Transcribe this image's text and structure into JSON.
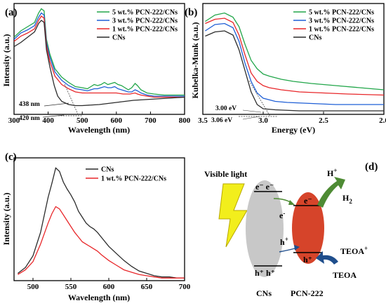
{
  "panels": {
    "a": "(a)",
    "b": "(b)",
    "c": "(c)",
    "d": "(d)"
  },
  "colors": {
    "cn": "#2b2b2b",
    "p1": "#e8272a",
    "p3": "#1f5fd6",
    "p5": "#22a64a",
    "grey": "#c8c8c8",
    "red": "#d6442a",
    "yellow": "#f2ee1c",
    "green": "#4e8b34",
    "blue": "#1f4e8c"
  },
  "chart_data": [
    {
      "panel": "(a)",
      "type": "line",
      "xlabel": "Wavelength (nm)",
      "ylabel": "Intensity (a.u.)",
      "xlim": [
        300,
        800
      ],
      "xticks": [
        300,
        400,
        500,
        600,
        700,
        800
      ],
      "yticks_shown": false,
      "legend": [
        "5 wt.% PCN-222/CNs",
        "3 wt.% PCN-222/CNs",
        "1 wt.% PCN-222/CNs",
        "CNs"
      ],
      "legend_position": "top-right",
      "annotations": [
        "438 nm",
        "420 nm"
      ],
      "series": [
        {
          "name": "5 wt.% PCN-222/CNs",
          "color": "#22a64a",
          "points": [
            [
              300,
              0.72
            ],
            [
              320,
              0.78
            ],
            [
              340,
              0.82
            ],
            [
              360,
              0.86
            ],
            [
              372,
              0.95
            ],
            [
              380,
              0.99
            ],
            [
              388,
              0.97
            ],
            [
              395,
              0.7
            ],
            [
              405,
              0.56
            ],
            [
              420,
              0.42
            ],
            [
              440,
              0.34
            ],
            [
              460,
              0.29
            ],
            [
              480,
              0.25
            ],
            [
              500,
              0.24
            ],
            [
              515,
              0.23
            ],
            [
              525,
              0.25
            ],
            [
              535,
              0.27
            ],
            [
              545,
              0.26
            ],
            [
              555,
              0.27
            ],
            [
              565,
              0.29
            ],
            [
              575,
              0.27
            ],
            [
              585,
              0.28
            ],
            [
              595,
              0.29
            ],
            [
              605,
              0.27
            ],
            [
              615,
              0.26
            ],
            [
              625,
              0.24
            ],
            [
              635,
              0.22
            ],
            [
              645,
              0.24
            ],
            [
              655,
              0.28
            ],
            [
              662,
              0.26
            ],
            [
              672,
              0.22
            ],
            [
              690,
              0.19
            ],
            [
              710,
              0.18
            ],
            [
              740,
              0.17
            ],
            [
              770,
              0.17
            ],
            [
              800,
              0.17
            ]
          ]
        },
        {
          "name": "3 wt.% PCN-222/CNs",
          "color": "#1f5fd6",
          "points": [
            [
              300,
              0.7
            ],
            [
              320,
              0.76
            ],
            [
              340,
              0.79
            ],
            [
              360,
              0.83
            ],
            [
              372,
              0.91
            ],
            [
              380,
              0.95
            ],
            [
              388,
              0.93
            ],
            [
              395,
              0.67
            ],
            [
              405,
              0.53
            ],
            [
              420,
              0.39
            ],
            [
              440,
              0.31
            ],
            [
              460,
              0.26
            ],
            [
              480,
              0.23
            ],
            [
              500,
              0.22
            ],
            [
              515,
              0.21
            ],
            [
              525,
              0.22
            ],
            [
              535,
              0.23
            ],
            [
              545,
              0.23
            ],
            [
              555,
              0.24
            ],
            [
              565,
              0.25
            ],
            [
              575,
              0.24
            ],
            [
              585,
              0.24
            ],
            [
              595,
              0.25
            ],
            [
              605,
              0.23
            ],
            [
              615,
              0.22
            ],
            [
              625,
              0.21
            ],
            [
              635,
              0.2
            ],
            [
              645,
              0.2
            ],
            [
              655,
              0.22
            ],
            [
              662,
              0.21
            ],
            [
              672,
              0.19
            ],
            [
              690,
              0.17
            ],
            [
              710,
              0.16
            ],
            [
              740,
              0.16
            ],
            [
              770,
              0.16
            ],
            [
              800,
              0.16
            ]
          ]
        },
        {
          "name": "1 wt.% PCN-222/CNs",
          "color": "#e8272a",
          "points": [
            [
              300,
              0.68
            ],
            [
              320,
              0.73
            ],
            [
              340,
              0.76
            ],
            [
              360,
              0.8
            ],
            [
              372,
              0.88
            ],
            [
              380,
              0.92
            ],
            [
              388,
              0.9
            ],
            [
              395,
              0.64
            ],
            [
              405,
              0.49
            ],
            [
              420,
              0.35
            ],
            [
              440,
              0.27
            ],
            [
              460,
              0.23
            ],
            [
              480,
              0.2
            ],
            [
              500,
              0.19
            ],
            [
              520,
              0.19
            ],
            [
              540,
              0.19
            ],
            [
              560,
              0.19
            ],
            [
              580,
              0.19
            ],
            [
              600,
              0.19
            ],
            [
              620,
              0.18
            ],
            [
              640,
              0.18
            ],
            [
              655,
              0.19
            ],
            [
              662,
              0.18
            ],
            [
              672,
              0.17
            ],
            [
              690,
              0.16
            ],
            [
              710,
              0.15
            ],
            [
              740,
              0.15
            ],
            [
              770,
              0.15
            ],
            [
              800,
              0.15
            ]
          ]
        },
        {
          "name": "CNs",
          "color": "#2b2b2b",
          "points": [
            [
              300,
              0.63
            ],
            [
              320,
              0.67
            ],
            [
              340,
              0.72
            ],
            [
              360,
              0.77
            ],
            [
              372,
              0.85
            ],
            [
              380,
              0.88
            ],
            [
              388,
              0.86
            ],
            [
              395,
              0.6
            ],
            [
              405,
              0.44
            ],
            [
              418,
              0.26
            ],
            [
              428,
              0.16
            ],
            [
              440,
              0.11
            ],
            [
              460,
              0.08
            ],
            [
              480,
              0.07
            ],
            [
              500,
              0.07
            ],
            [
              550,
              0.08
            ],
            [
              600,
              0.1
            ],
            [
              650,
              0.12
            ],
            [
              700,
              0.13
            ],
            [
              750,
              0.14
            ],
            [
              800,
              0.15
            ]
          ]
        }
      ]
    },
    {
      "panel": "(b)",
      "type": "line",
      "xlabel": "Energy (eV)",
      "ylabel": "Kubelka-Munk (a.u.)",
      "xlim": [
        3.5,
        2.0
      ],
      "xticks": [
        "3.5",
        "3.0",
        "2.5",
        "2.0"
      ],
      "yticks_shown": false,
      "legend": [
        "5 wt.% PCN-222/CNs",
        "3 wt.% PCN-222/CNs",
        "1 wt.% PCN-222/CNs",
        "CNs"
      ],
      "legend_position": "top-right",
      "annotations": [
        "3.00 eV",
        "3.06 eV"
      ],
      "series": [
        {
          "name": "5 wt.% PCN-222/CNs",
          "color": "#22a64a",
          "points": [
            [
              3.48,
              0.87
            ],
            [
              3.4,
              0.93
            ],
            [
              3.32,
              0.95
            ],
            [
              3.25,
              0.91
            ],
            [
              3.2,
              0.82
            ],
            [
              3.15,
              0.65
            ],
            [
              3.1,
              0.5
            ],
            [
              3.05,
              0.42
            ],
            [
              3.0,
              0.37
            ],
            [
              2.95,
              0.35
            ],
            [
              2.85,
              0.32
            ],
            [
              2.75,
              0.3
            ],
            [
              2.6,
              0.28
            ],
            [
              2.4,
              0.26
            ],
            [
              2.2,
              0.24
            ],
            [
              2.0,
              0.22
            ]
          ]
        },
        {
          "name": "3 wt.% PCN-222/CNs",
          "color": "#1f5fd6",
          "points": [
            [
              3.48,
              0.78
            ],
            [
              3.4,
              0.84
            ],
            [
              3.32,
              0.85
            ],
            [
              3.25,
              0.81
            ],
            [
              3.2,
              0.68
            ],
            [
              3.15,
              0.47
            ],
            [
              3.1,
              0.3
            ],
            [
              3.05,
              0.19
            ],
            [
              3.0,
              0.14
            ],
            [
              2.9,
              0.11
            ],
            [
              2.8,
              0.1
            ],
            [
              2.6,
              0.09
            ],
            [
              2.4,
              0.08
            ],
            [
              2.2,
              0.08
            ],
            [
              2.0,
              0.08
            ]
          ]
        },
        {
          "name": "1 wt.% PCN-222/CNs",
          "color": "#e8272a",
          "points": [
            [
              3.48,
              0.85
            ],
            [
              3.4,
              0.89
            ],
            [
              3.32,
              0.9
            ],
            [
              3.25,
              0.86
            ],
            [
              3.2,
              0.74
            ],
            [
              3.15,
              0.55
            ],
            [
              3.1,
              0.38
            ],
            [
              3.05,
              0.3
            ],
            [
              3.0,
              0.26
            ],
            [
              2.95,
              0.24
            ],
            [
              2.85,
              0.22
            ],
            [
              2.7,
              0.2
            ],
            [
              2.5,
              0.19
            ],
            [
              2.3,
              0.18
            ],
            [
              2.0,
              0.17
            ]
          ]
        },
        {
          "name": "CNs",
          "color": "#2b2b2b",
          "points": [
            [
              3.48,
              0.73
            ],
            [
              3.4,
              0.77
            ],
            [
              3.32,
              0.78
            ],
            [
              3.25,
              0.74
            ],
            [
              3.2,
              0.6
            ],
            [
              3.15,
              0.4
            ],
            [
              3.1,
              0.2
            ],
            [
              3.05,
              0.08
            ],
            [
              3.0,
              0.04
            ],
            [
              2.9,
              0.03
            ],
            [
              2.7,
              0.02
            ],
            [
              2.4,
              0.02
            ],
            [
              2.0,
              0.02
            ]
          ]
        }
      ]
    },
    {
      "panel": "(c)",
      "type": "line",
      "xlabel": "Wavelength (nm)",
      "ylabel": "Intensity (a.u.)",
      "xlim": [
        475,
        700
      ],
      "xticks": [
        500,
        550,
        600,
        650,
        700
      ],
      "yticks_shown": false,
      "legend": [
        "CNs",
        "1 wt.% PCN-222/CNs"
      ],
      "legend_position": "top-right",
      "series": [
        {
          "name": "CNs",
          "color": "#2b2b2b",
          "points": [
            [
              480,
              0.05
            ],
            [
              490,
              0.1
            ],
            [
              500,
              0.2
            ],
            [
              510,
              0.4
            ],
            [
              520,
              0.7
            ],
            [
              525,
              0.82
            ],
            [
              530,
              0.95
            ],
            [
              535,
              0.92
            ],
            [
              540,
              0.83
            ],
            [
              545,
              0.77
            ],
            [
              550,
              0.72
            ],
            [
              555,
              0.66
            ],
            [
              560,
              0.58
            ],
            [
              565,
              0.53
            ],
            [
              570,
              0.48
            ],
            [
              575,
              0.45
            ],
            [
              580,
              0.43
            ],
            [
              585,
              0.4
            ],
            [
              590,
              0.36
            ],
            [
              600,
              0.28
            ],
            [
              610,
              0.22
            ],
            [
              620,
              0.16
            ],
            [
              630,
              0.11
            ],
            [
              640,
              0.07
            ],
            [
              650,
              0.05
            ],
            [
              660,
              0.03
            ],
            [
              670,
              0.02
            ],
            [
              680,
              0.02
            ],
            [
              690,
              0.01
            ],
            [
              700,
              0.01
            ]
          ]
        },
        {
          "name": "1 wt.% PCN-222/CNs",
          "color": "#e8272a",
          "points": [
            [
              480,
              0.04
            ],
            [
              490,
              0.08
            ],
            [
              500,
              0.15
            ],
            [
              510,
              0.3
            ],
            [
              520,
              0.48
            ],
            [
              525,
              0.56
            ],
            [
              530,
              0.62
            ],
            [
              535,
              0.6
            ],
            [
              540,
              0.55
            ],
            [
              545,
              0.5
            ],
            [
              550,
              0.45
            ],
            [
              555,
              0.4
            ],
            [
              560,
              0.36
            ],
            [
              565,
              0.32
            ],
            [
              570,
              0.3
            ],
            [
              575,
              0.28
            ],
            [
              580,
              0.26
            ],
            [
              585,
              0.24
            ],
            [
              590,
              0.21
            ],
            [
              600,
              0.16
            ],
            [
              610,
              0.12
            ],
            [
              620,
              0.08
            ],
            [
              630,
              0.06
            ],
            [
              640,
              0.04
            ],
            [
              650,
              0.03
            ],
            [
              660,
              0.02
            ],
            [
              670,
              0.01
            ],
            [
              690,
              0.01
            ],
            [
              700,
              0.01
            ]
          ]
        }
      ]
    }
  ],
  "diagram": {
    "visible_light": "Visible light",
    "h_plus": "H",
    "h_plus_sup": "+",
    "h2": "H",
    "h2_sub": "2",
    "cb_cns": "e⁻ e⁻",
    "vb_cns": "h⁺ h⁺",
    "e_mid": "e",
    "e_mid_sup": "-",
    "h_mid": "h",
    "h_mid_sup": "+",
    "cb_pcn": "e⁻",
    "vb_pcn": "h⁺",
    "teoa_plus": "TEOA",
    "teoa_plus_sup": "+",
    "teoa": "TEOA",
    "label_cns": "CNs",
    "label_pcn": "PCN-222"
  }
}
